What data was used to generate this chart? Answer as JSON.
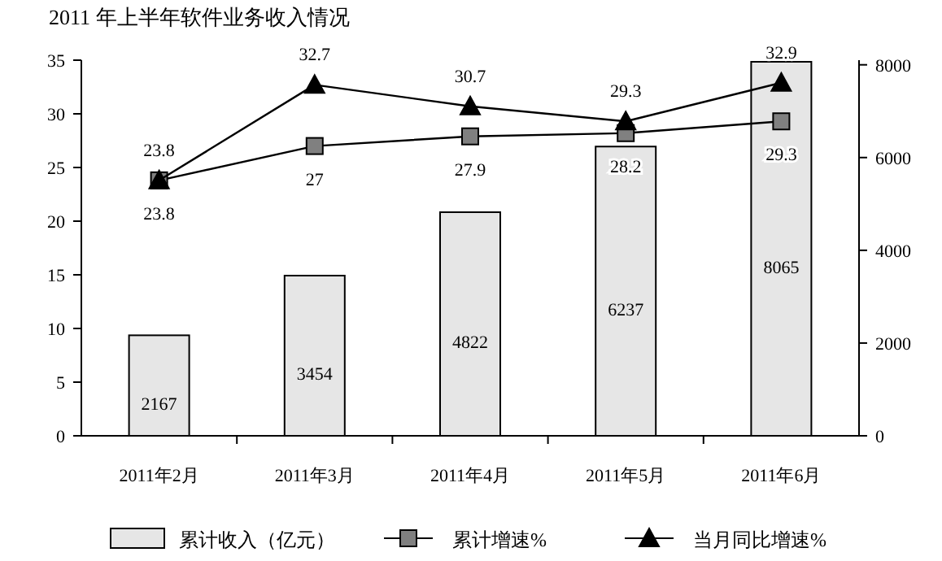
{
  "chart_data": {
    "type": "bar",
    "title": "2011 年上半年软件业务收入情况",
    "categories": [
      "2011年2月",
      "2011年3月",
      "2011年4月",
      "2011年5月",
      "2011年6月"
    ],
    "series": [
      {
        "name": "累计收入（亿元）",
        "axis": "y2",
        "color": "#e6e6e6",
        "values": [
          2167,
          3454,
          4822,
          6237,
          8065
        ]
      },
      {
        "name": "累计增速%",
        "type": "line",
        "marker": "square",
        "color": "#808080",
        "values": [
          23.8,
          27,
          27.9,
          28.2,
          29.3
        ]
      },
      {
        "name": "当月同比增速%",
        "type": "line",
        "marker": "triangle",
        "color": "#000000",
        "values": [
          23.8,
          32.7,
          30.7,
          29.3,
          32.9
        ]
      }
    ],
    "ylim": [
      0,
      35
    ],
    "yticks": [
      0,
      5,
      10,
      15,
      20,
      25,
      30,
      35
    ],
    "y2lim": [
      0,
      8100
    ],
    "y2ticks": [
      0,
      2000,
      4000,
      6000,
      8000
    ],
    "data_labels": true,
    "legend": "bottom",
    "grid": false
  }
}
